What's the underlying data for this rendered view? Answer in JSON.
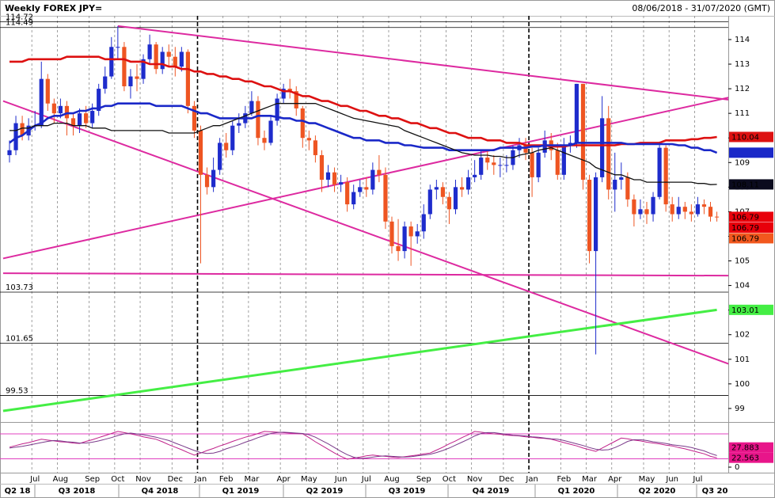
{
  "chart_data": {
    "type": "candlestick",
    "title": "Weekly FOREX JPY=",
    "subtitle": "08/06/2018 - 31/07/2020 (GMT)",
    "categories": [
      null,
      null,
      null,
      null,
      "Jul",
      null,
      null,
      null,
      "Aug",
      null,
      null,
      null,
      null,
      "Sep",
      null,
      null,
      null,
      "Oct",
      null,
      null,
      null,
      "Nov",
      null,
      null,
      null,
      null,
      "Dec",
      null,
      null,
      null,
      "Jan",
      null,
      null,
      null,
      "Feb",
      null,
      null,
      null,
      "Mar",
      null,
      null,
      null,
      null,
      "Apr",
      null,
      null,
      null,
      "May",
      null,
      null,
      null,
      null,
      "Jun",
      null,
      null,
      null,
      "Jul",
      null,
      null,
      null,
      "Aug",
      null,
      null,
      null,
      null,
      "Sep",
      null,
      null,
      null,
      "Oct",
      null,
      null,
      null,
      "Nov",
      null,
      null,
      null,
      null,
      "Dec",
      null,
      null,
      null,
      "Jan",
      null,
      null,
      null,
      null,
      "Feb",
      null,
      null,
      null,
      "Mar",
      null,
      null,
      null,
      "Apr",
      null,
      null,
      null,
      null,
      "May",
      null,
      null,
      null,
      "Jun",
      null,
      null,
      null,
      "Jul",
      null,
      null,
      null
    ],
    "open": [
      109.3,
      109.5,
      110.6,
      110.1,
      110.5,
      110.5,
      112.4,
      111.4,
      111.0,
      111.3,
      110.8,
      110.5,
      111.0,
      110.6,
      111.1,
      112.0,
      112.5,
      113.7,
      113.7,
      112.1,
      112.5,
      112.4,
      113.2,
      113.8,
      112.8,
      113.5,
      113.3,
      112.9,
      113.5,
      111.3,
      110.3,
      108.5,
      108.0,
      108.7,
      109.8,
      109.5,
      110.5,
      110.6,
      111.0,
      111.5,
      110.0,
      109.8,
      110.7,
      111.6,
      112.0,
      111.9,
      111.2,
      110.0,
      109.9,
      109.3,
      108.3,
      108.6,
      108.1,
      108.2,
      107.3,
      107.8,
      108.0,
      107.9,
      108.7,
      108.5,
      106.6,
      105.6,
      105.4,
      106.4,
      106.0,
      106.2,
      106.9,
      107.9,
      108.0,
      107.6,
      107.1,
      108.0,
      107.9,
      108.4,
      108.5,
      109.2,
      109.0,
      108.9,
      108.9,
      108.9,
      109.5,
      109.7,
      109.4,
      108.4,
      109.4,
      109.9,
      109.5,
      108.5,
      109.7,
      109.8,
      112.2,
      108.3,
      105.4,
      108.4,
      110.8,
      107.9,
      108.3,
      108.4,
      107.5,
      106.9,
      107.1,
      106.9,
      107.6,
      109.6,
      107.3,
      106.9,
      107.2,
      107.0,
      106.9,
      107.3,
      107.2,
      106.8
    ],
    "high": [
      109.9,
      110.9,
      110.9,
      110.8,
      111.1,
      113.1,
      112.6,
      111.6,
      111.6,
      111.5,
      111.0,
      111.2,
      111.3,
      111.4,
      112.2,
      112.9,
      114.1,
      114.55,
      113.9,
      112.8,
      113.0,
      113.4,
      114.2,
      113.9,
      113.7,
      113.8,
      113.7,
      113.7,
      113.6,
      111.5,
      110.5,
      108.8,
      109.2,
      110.0,
      110.2,
      110.7,
      111.0,
      111.3,
      111.9,
      111.7,
      110.3,
      110.9,
      111.8,
      112.2,
      112.4,
      112.1,
      111.3,
      110.3,
      110.1,
      109.5,
      108.9,
      108.8,
      108.5,
      108.4,
      108.1,
      108.3,
      108.4,
      109.0,
      109.3,
      108.8,
      106.8,
      106.7,
      106.6,
      106.6,
      106.5,
      107.3,
      108.1,
      108.3,
      108.2,
      107.8,
      108.3,
      108.4,
      108.7,
      109.1,
      109.5,
      109.5,
      109.3,
      109.2,
      109.3,
      109.7,
      110.0,
      110.0,
      109.6,
      109.6,
      110.3,
      110.2,
      109.8,
      110.0,
      110.1,
      112.2,
      112.2,
      108.5,
      108.6,
      111.7,
      111.3,
      109.4,
      109.0,
      108.6,
      107.7,
      107.5,
      107.4,
      107.8,
      109.85,
      109.7,
      107.6,
      107.6,
      107.4,
      107.3,
      107.6,
      107.5,
      107.4,
      107.0
    ],
    "low": [
      109.0,
      109.3,
      109.9,
      109.9,
      110.3,
      110.4,
      111.1,
      110.6,
      110.8,
      110.1,
      110.1,
      110.2,
      110.4,
      110.4,
      110.9,
      111.8,
      112.4,
      113.2,
      111.9,
      111.6,
      111.9,
      112.2,
      113.0,
      112.6,
      112.6,
      112.9,
      112.5,
      112.7,
      111.0,
      110.0,
      104.9,
      107.7,
      107.8,
      108.5,
      109.2,
      109.3,
      110.2,
      110.4,
      110.9,
      109.7,
      109.5,
      109.7,
      110.5,
      111.4,
      111.6,
      110.9,
      109.6,
      109.5,
      109.0,
      107.8,
      108.0,
      107.8,
      107.8,
      107.0,
      107.1,
      107.6,
      107.6,
      107.7,
      108.2,
      106.3,
      105.3,
      105.0,
      105.1,
      104.8,
      105.7,
      105.9,
      106.7,
      107.5,
      107.3,
      106.5,
      106.9,
      107.6,
      107.7,
      108.2,
      108.3,
      108.7,
      108.5,
      108.4,
      108.6,
      108.7,
      109.2,
      109.1,
      107.6,
      108.2,
      109.2,
      109.1,
      108.3,
      108.3,
      109.4,
      109.6,
      107.9,
      104.9,
      101.2,
      108.2,
      107.5,
      107.0,
      107.9,
      107.2,
      106.4,
      106.7,
      106.5,
      106.6,
      107.5,
      107.0,
      106.6,
      106.7,
      106.7,
      106.6,
      106.8,
      106.9,
      106.6,
      106.6
    ],
    "close": [
      109.5,
      110.6,
      110.1,
      110.5,
      110.5,
      112.4,
      111.4,
      111.0,
      111.3,
      110.8,
      110.5,
      111.0,
      110.6,
      111.1,
      112.0,
      112.5,
      113.7,
      113.7,
      112.1,
      112.5,
      112.4,
      113.2,
      113.8,
      112.8,
      113.5,
      113.3,
      112.9,
      113.5,
      111.3,
      110.3,
      108.5,
      108.0,
      108.7,
      109.8,
      109.5,
      110.5,
      110.6,
      111.0,
      111.5,
      110.0,
      109.8,
      110.7,
      111.6,
      112.0,
      111.9,
      111.2,
      110.0,
      109.9,
      109.3,
      108.3,
      108.6,
      108.1,
      108.2,
      107.3,
      107.8,
      108.0,
      107.9,
      108.7,
      108.5,
      106.6,
      105.6,
      105.4,
      106.4,
      106.0,
      106.2,
      106.9,
      107.9,
      108.0,
      107.6,
      107.1,
      108.0,
      107.9,
      108.4,
      108.5,
      109.2,
      109.0,
      108.9,
      108.9,
      108.9,
      109.5,
      109.7,
      109.4,
      108.4,
      109.4,
      109.9,
      109.5,
      108.5,
      109.7,
      109.8,
      112.2,
      108.3,
      105.4,
      108.4,
      110.8,
      107.9,
      108.3,
      108.4,
      107.5,
      106.9,
      107.1,
      106.9,
      107.6,
      109.6,
      107.3,
      106.9,
      107.2,
      107.0,
      106.9,
      107.3,
      107.2,
      106.8,
      106.79
    ],
    "up_color": "#1e2ccc",
    "down_color": "#ee5522",
    "close_tag_colors": [
      "#e8000b",
      "#e8000b",
      "#f2581e"
    ],
    "ylim": [
      98.45,
      114.9
    ],
    "yticks": [
      99,
      100,
      101,
      102,
      103,
      104,
      105,
      106,
      107,
      108,
      109,
      110,
      111,
      112,
      113,
      114
    ],
    "levels": [
      114.72,
      114.49,
      103.73,
      101.65,
      99.53
    ],
    "level_color": "#000000",
    "lines": [
      {
        "color": "#dd1111",
        "values": [
          113.1,
          113.1,
          113.1,
          113.2,
          113.2,
          113.2,
          113.2,
          113.2,
          113.2,
          113.3,
          113.3,
          113.3,
          113.3,
          113.3,
          113.3,
          113.2,
          113.2,
          113.2,
          113.2,
          113.1,
          113.1,
          113.1,
          113.0,
          113.0,
          113.0,
          112.9,
          112.9,
          112.8,
          112.8,
          112.7,
          112.7,
          112.6,
          112.6,
          112.5,
          112.5,
          112.4,
          112.4,
          112.3,
          112.3,
          112.2,
          112.1,
          112.1,
          112.0,
          111.9,
          111.9,
          111.8,
          111.7,
          111.7,
          111.6,
          111.5,
          111.5,
          111.4,
          111.3,
          111.3,
          111.2,
          111.1,
          111.1,
          111.0,
          110.9,
          110.9,
          110.8,
          110.8,
          110.7,
          110.6,
          110.6,
          110.5,
          110.4,
          110.4,
          110.3,
          110.2,
          110.2,
          110.1,
          110.0,
          110.0,
          110.0,
          109.9,
          109.9,
          109.9,
          109.8,
          109.8,
          109.8,
          109.7,
          109.7,
          109.7,
          109.7,
          109.65,
          109.65,
          109.65,
          109.7,
          109.7,
          109.7,
          109.7,
          109.7,
          109.7,
          109.7,
          109.7,
          109.75,
          109.75,
          109.75,
          109.8,
          109.8,
          109.8,
          109.8,
          109.9,
          109.9,
          109.9,
          109.9,
          109.95,
          109.95,
          110.0,
          110.0,
          110.04
        ]
      },
      {
        "color": "#1a28c8",
        "values": [
          109.8,
          110.0,
          110.1,
          110.3,
          110.5,
          110.6,
          110.8,
          110.9,
          110.9,
          111.0,
          111.0,
          111.1,
          111.1,
          111.2,
          111.2,
          111.3,
          111.3,
          111.4,
          111.4,
          111.4,
          111.4,
          111.4,
          111.4,
          111.3,
          111.3,
          111.3,
          111.3,
          111.3,
          111.2,
          111.1,
          111.0,
          111.0,
          110.9,
          110.8,
          110.8,
          110.8,
          110.8,
          110.8,
          110.8,
          110.9,
          110.9,
          110.9,
          110.85,
          110.8,
          110.8,
          110.7,
          110.7,
          110.6,
          110.6,
          110.5,
          110.4,
          110.3,
          110.2,
          110.1,
          110.0,
          110.0,
          109.9,
          109.9,
          109.9,
          109.8,
          109.8,
          109.8,
          109.7,
          109.7,
          109.65,
          109.6,
          109.6,
          109.6,
          109.6,
          109.5,
          109.5,
          109.5,
          109.5,
          109.5,
          109.5,
          109.5,
          109.5,
          109.6,
          109.6,
          109.6,
          109.6,
          109.6,
          109.65,
          109.65,
          109.7,
          109.7,
          109.7,
          109.7,
          109.7,
          109.8,
          109.8,
          109.8,
          109.8,
          109.8,
          109.8,
          109.8,
          109.8,
          109.75,
          109.75,
          109.75,
          109.75,
          109.75,
          109.75,
          109.75,
          109.75,
          109.7,
          109.7,
          109.6,
          109.6,
          109.5,
          109.5,
          109.4
        ]
      },
      {
        "color": "#111111",
        "values": [
          110.3,
          110.3,
          110.4,
          110.4,
          110.5,
          110.5,
          110.5,
          110.6,
          110.6,
          110.6,
          110.5,
          110.5,
          110.5,
          110.4,
          110.4,
          110.4,
          110.3,
          110.3,
          110.3,
          110.3,
          110.3,
          110.3,
          110.3,
          110.3,
          110.3,
          110.2,
          110.2,
          110.2,
          110.2,
          110.2,
          110.3,
          110.4,
          110.5,
          110.5,
          110.6,
          110.7,
          110.8,
          110.9,
          111.0,
          111.1,
          111.2,
          111.3,
          111.4,
          111.4,
          111.4,
          111.4,
          111.4,
          111.4,
          111.4,
          111.3,
          111.2,
          111.1,
          111.0,
          110.9,
          110.8,
          110.75,
          110.7,
          110.65,
          110.6,
          110.55,
          110.5,
          110.45,
          110.3,
          110.2,
          110.1,
          110.0,
          109.9,
          109.8,
          109.7,
          109.6,
          109.5,
          109.4,
          109.35,
          109.3,
          109.3,
          109.3,
          109.25,
          109.25,
          109.2,
          109.2,
          109.3,
          109.35,
          109.4,
          109.5,
          109.55,
          109.6,
          109.5,
          109.4,
          109.3,
          109.2,
          109.1,
          109.0,
          108.8,
          108.7,
          108.6,
          108.5,
          108.5,
          108.4,
          108.3,
          108.3,
          108.2,
          108.2,
          108.2,
          108.2,
          108.2,
          108.2,
          108.2,
          108.2,
          108.15,
          108.15,
          108.1,
          108.11
        ]
      }
    ],
    "trendlines": [
      {
        "color": "#dd2aa0",
        "x": [
          17,
          113
        ],
        "values": [
          114.55,
          111.55
        ]
      },
      {
        "color": "#dd2aa0",
        "x": [
          -1,
          113
        ],
        "values": [
          105.1,
          111.65
        ]
      },
      {
        "color": "#dd2aa0",
        "x": [
          -1,
          113
        ],
        "values": [
          111.5,
          100.8
        ]
      },
      {
        "color": "#dd2aa0",
        "x": [
          -1,
          113
        ],
        "values": [
          104.5,
          104.4
        ]
      },
      {
        "color": "#44ee44",
        "x": [
          -1,
          111
        ],
        "values": [
          98.9,
          103.01
        ]
      }
    ],
    "oscillator": {
      "ylim": [
        -13.3,
        108.6
      ],
      "yticks": [
        0
      ],
      "levels": [
        20,
        80
      ],
      "level_color": "#e040c0",
      "tag_color": "#e8158a",
      "series": [
        {
          "color": "#c0208a",
          "values": [
            48,
            52,
            56,
            59,
            63,
            67,
            65,
            63,
            61,
            60,
            58,
            57,
            62,
            66,
            71,
            76,
            81,
            86,
            83,
            80,
            77,
            73,
            70,
            67,
            61,
            54,
            48,
            42,
            35,
            29,
            34,
            40,
            45,
            51,
            56,
            62,
            67,
            72,
            76,
            81,
            86,
            85,
            84,
            83,
            82,
            81,
            80,
            71,
            61,
            52,
            43,
            34,
            26,
            19,
            22,
            24,
            27,
            29,
            27,
            26,
            24,
            23,
            25,
            27,
            29,
            32,
            34,
            41,
            48,
            56,
            63,
            71,
            78,
            86,
            84,
            82,
            80,
            79,
            77,
            76,
            75,
            73,
            72,
            70,
            69,
            67,
            63,
            59,
            55,
            51,
            46,
            42,
            38,
            46,
            54,
            62,
            70,
            68,
            65,
            63,
            60,
            58,
            56,
            53,
            51,
            47,
            44,
            40,
            36,
            32,
            26,
            22.563
          ]
        },
        {
          "color": "#7a3a8a",
          "values": [
            46,
            48,
            50,
            53,
            56,
            59,
            62,
            64,
            63,
            61,
            60,
            58,
            58,
            60,
            63,
            67,
            71,
            76,
            80,
            82,
            80,
            78,
            75,
            72,
            68,
            64,
            58,
            52,
            46,
            40,
            35,
            33,
            34,
            38,
            44,
            49,
            54,
            60,
            65,
            71,
            76,
            81,
            83,
            84,
            83,
            82,
            81,
            78,
            72,
            64,
            56,
            47,
            38,
            30,
            24,
            21,
            22,
            24,
            26,
            27,
            26,
            25,
            24,
            25,
            27,
            29,
            31,
            35,
            40,
            46,
            53,
            60,
            67,
            75,
            81,
            83,
            83,
            81,
            79,
            77,
            76,
            75,
            73,
            72,
            70,
            68,
            67,
            64,
            60,
            56,
            52,
            47,
            43,
            41,
            42,
            47,
            54,
            62,
            66,
            66,
            64,
            61,
            59,
            57,
            54,
            52,
            50,
            47,
            43,
            39,
            33,
            27.883
          ]
        }
      ]
    },
    "quarters": [
      "Q2 18",
      "Q3 2018",
      "Q4 2018",
      "Q1 2019",
      "Q2 2019",
      "Q3 2019",
      "Q4 2019",
      "Q1 2020",
      "Q2 2020",
      "Q3 20"
    ]
  }
}
